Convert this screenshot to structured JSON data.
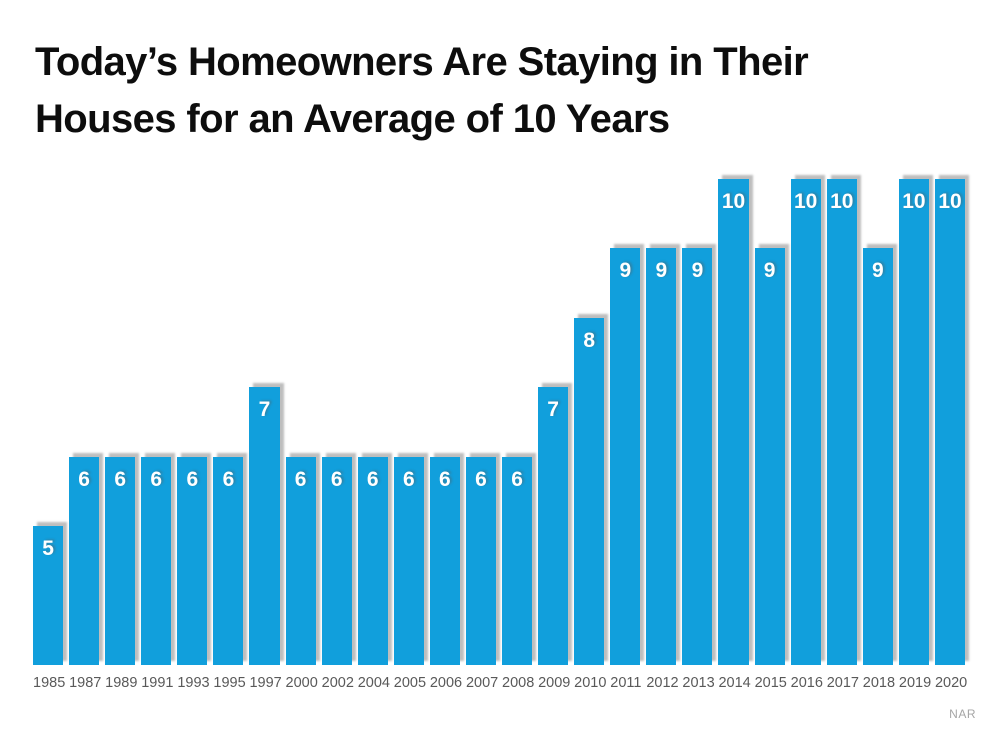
{
  "header": {
    "title_line1": "Today’s Homeowners Are Staying in Their",
    "title_line2": "Houses for an Average of 10 Years",
    "title_color": "#0D0D0D"
  },
  "footer": {
    "source_label": "NAR",
    "source_color": "#A6A6A6"
  },
  "colors": {
    "bar": "#119FDC",
    "bar_shadow": "#ABABAB",
    "value_label": "#FFFFFF",
    "axis_tick": "#595959",
    "background": "#FFFFFF"
  },
  "chart_data": {
    "type": "bar",
    "title": "Today’s Homeowners Are Staying in Their Houses for an Average of 10 Years",
    "categories": [
      "1985",
      "1987",
      "1989",
      "1991",
      "1993",
      "1995",
      "1997",
      "2000",
      "2002",
      "2004",
      "2005",
      "2006",
      "2007",
      "2008",
      "2009",
      "2010",
      "2011",
      "2012",
      "2013",
      "2014",
      "2015",
      "2016",
      "2017",
      "2018",
      "2019",
      "2020"
    ],
    "values": [
      5,
      6,
      6,
      6,
      6,
      6,
      7,
      6,
      6,
      6,
      6,
      6,
      6,
      6,
      7,
      8,
      9,
      9,
      9,
      10,
      9,
      10,
      10,
      9,
      10,
      10
    ],
    "xlabel": "",
    "ylabel": "",
    "ylim": [
      3,
      10
    ],
    "grid": false,
    "legend": "none",
    "value_labels_shown": true,
    "source": "NAR"
  }
}
